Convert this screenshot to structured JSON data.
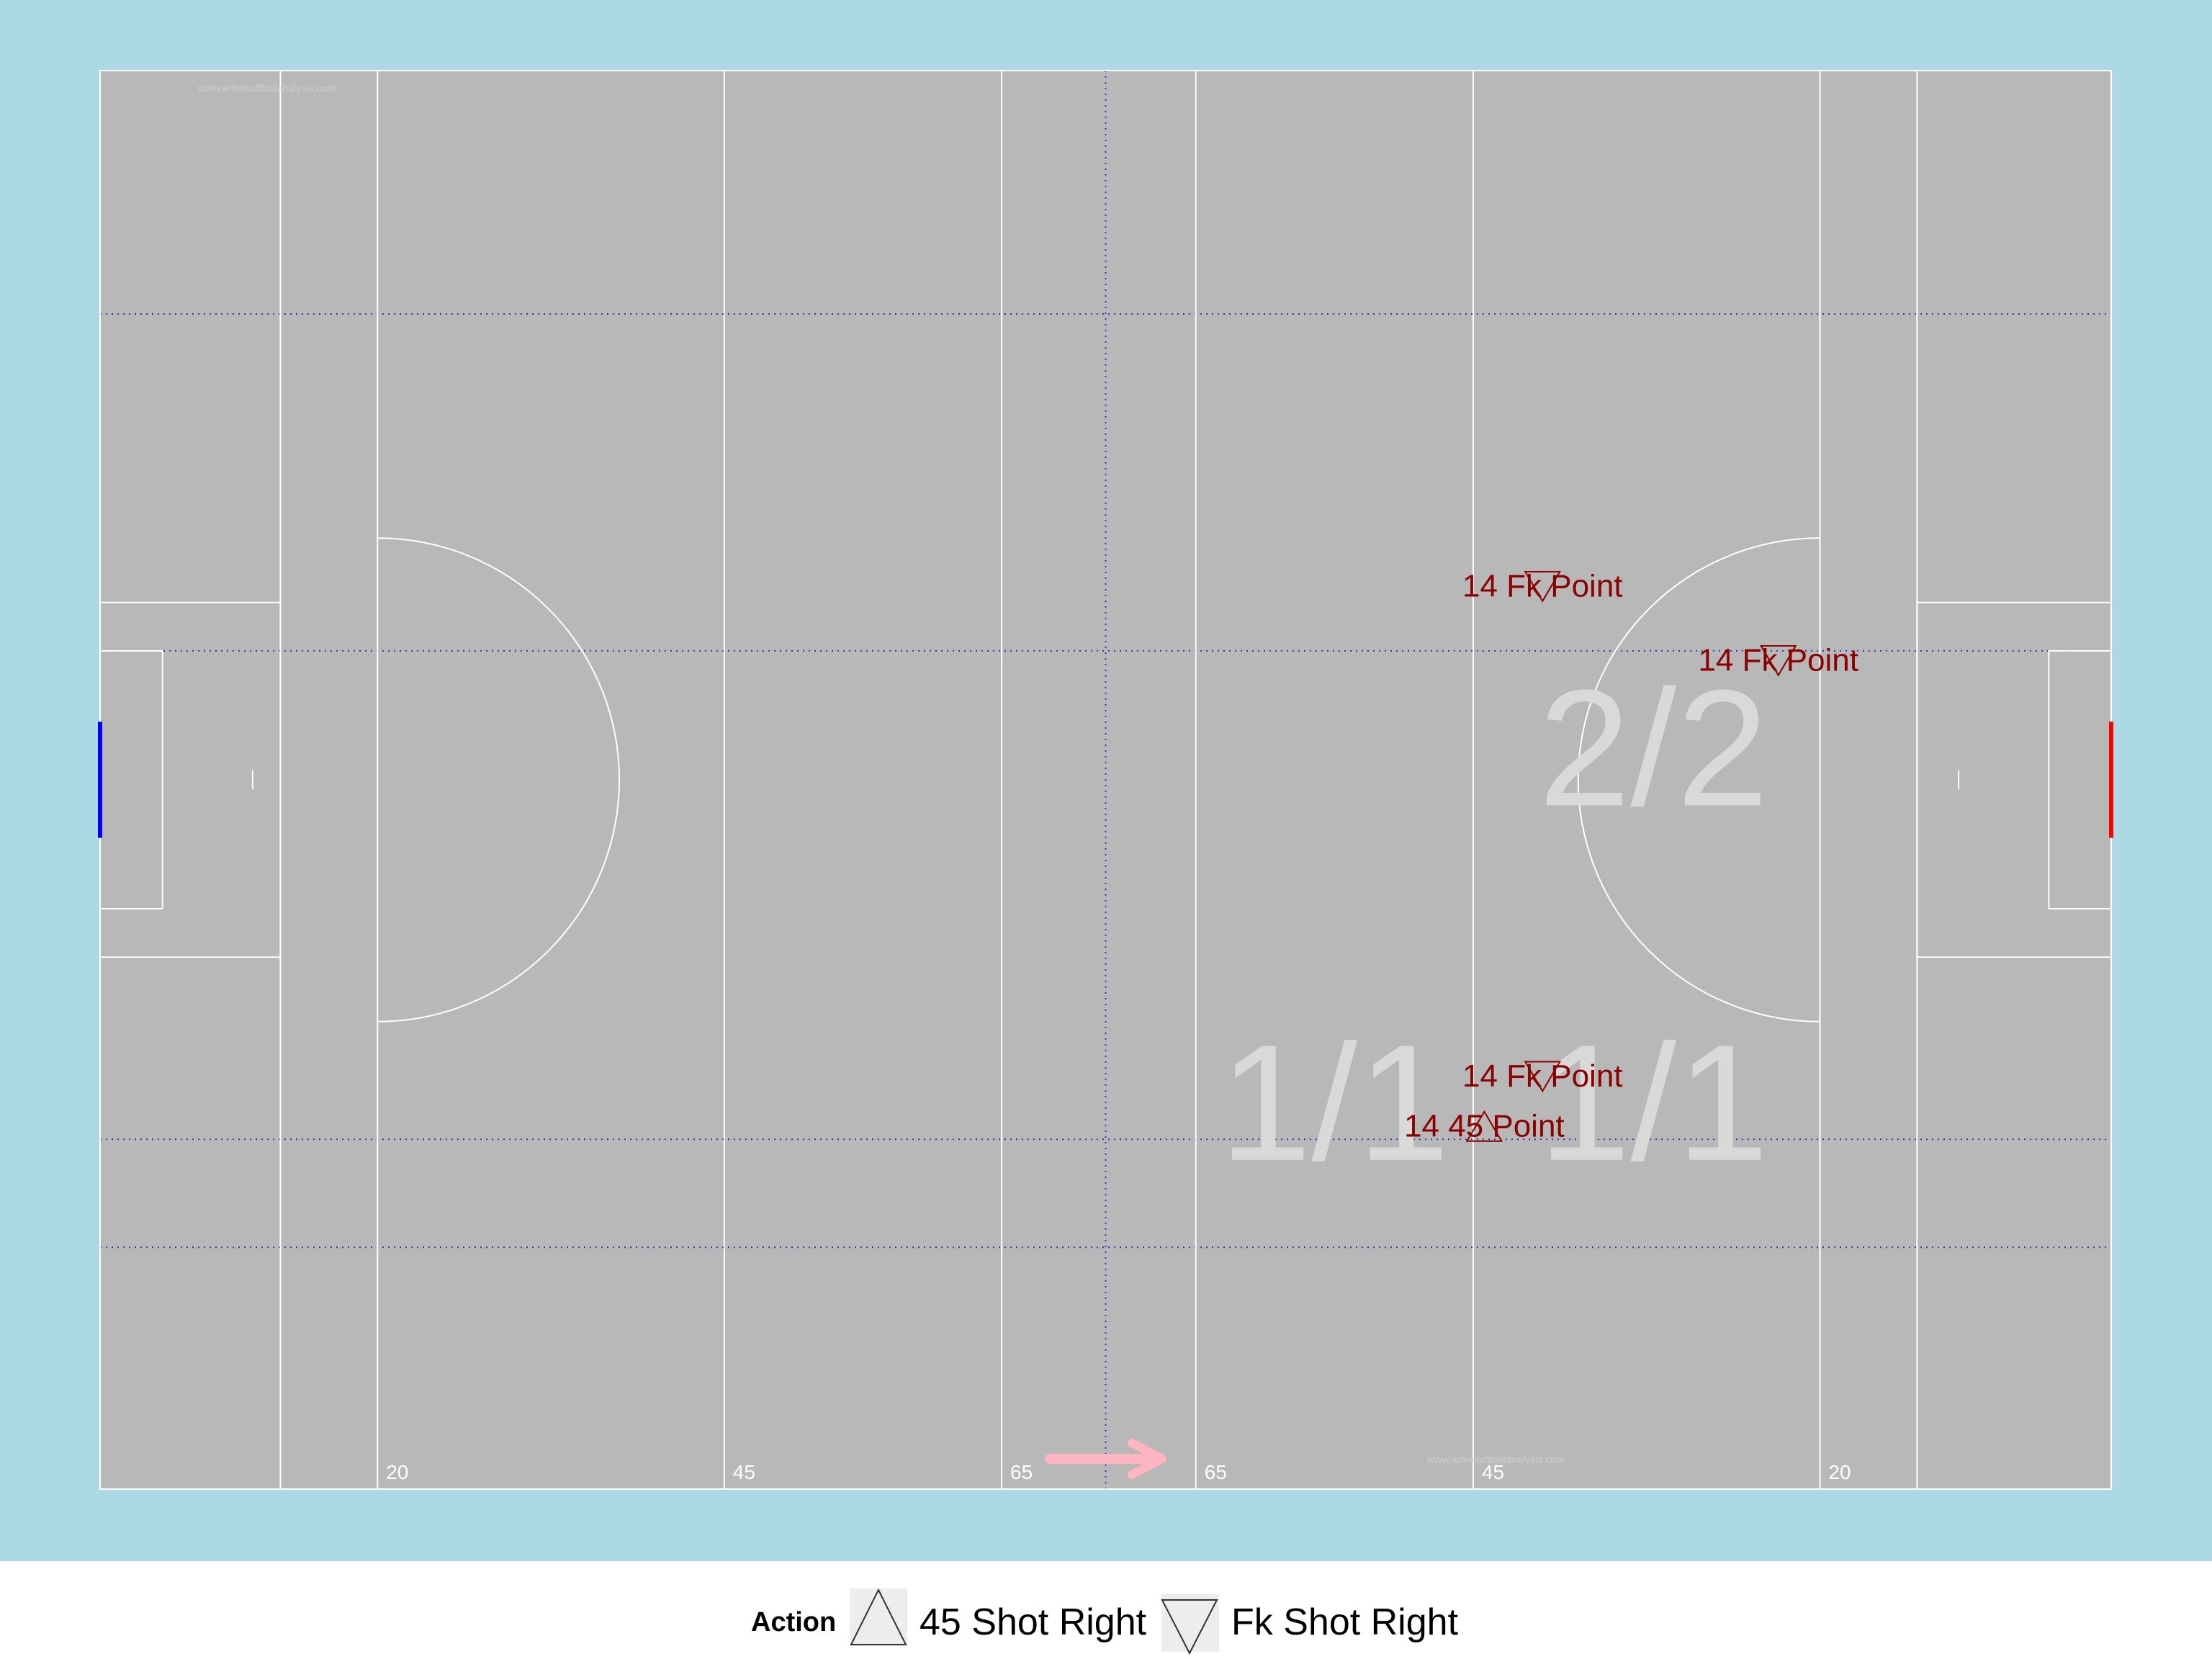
{
  "colors": {
    "panel_bg": "#add8e6",
    "pitch": "#b8b8b8",
    "lines": "#ffffff",
    "grid": "#3333cc",
    "shot": "#8b0000",
    "zone_text": "#d9d9d9",
    "goal_left": "#0000ff",
    "goal_right": "#ff0000",
    "arrow": "#ffb6c1"
  },
  "watermark": "www.wilnesoftballanalysis.com",
  "chart_data": {
    "type": "scatter",
    "title": "",
    "xlabel": "",
    "ylabel": "",
    "xlim": [
      0,
      145
    ],
    "ylim": [
      0,
      88
    ],
    "grid": true,
    "legend_position": "bottom",
    "distance_markers": [
      {
        "x": 20,
        "label": "20"
      },
      {
        "x": 45,
        "label": "45"
      },
      {
        "x": 65,
        "label": "65"
      },
      {
        "x": 79,
        "label": "65"
      },
      {
        "x": 99,
        "label": "45"
      },
      {
        "x": 124,
        "label": "20"
      }
    ],
    "zone_labels": [
      {
        "x": 89,
        "y": 24,
        "label": "1/1"
      },
      {
        "x": 112,
        "y": 24,
        "label": "1/1"
      },
      {
        "x": 112,
        "y": 46,
        "label": "2/2"
      }
    ],
    "legend": {
      "title": "Action",
      "entries": [
        {
          "label": "45 Shot Right",
          "marker": "triangle-up"
        },
        {
          "label": "Fk Shot Right",
          "marker": "triangle-down"
        }
      ]
    },
    "points": [
      {
        "x": 104,
        "y": 56,
        "label": "14 Fk Point",
        "action": "Fk Shot Right"
      },
      {
        "x": 121,
        "y": 51.4,
        "label": "14 Fk Point",
        "action": "Fk Shot Right"
      },
      {
        "x": 104,
        "y": 25.6,
        "label": "14 Fk Point",
        "action": "Fk Shot Right"
      },
      {
        "x": 99.8,
        "y": 22.5,
        "label": "14 45 Point",
        "action": "45 Shot Right"
      }
    ]
  }
}
